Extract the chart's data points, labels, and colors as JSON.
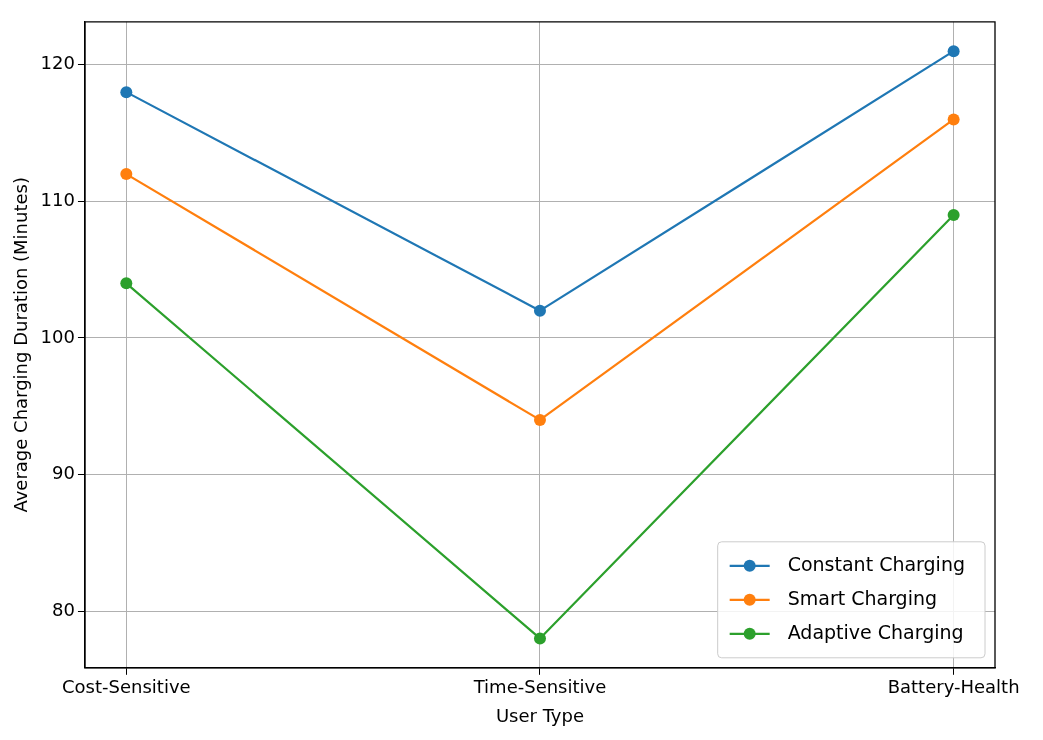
{
  "chart_data": {
    "type": "line",
    "xlabel": "User Type",
    "ylabel": "Average Charging Duration (Minutes)",
    "categories": [
      "Cost-Sensitive",
      "Time-Sensitive",
      "Battery-Health"
    ],
    "series": [
      {
        "name": "Constant Charging",
        "color": "#1f77b4",
        "values": [
          118,
          102,
          121
        ]
      },
      {
        "name": "Smart Charging",
        "color": "#ff7f0e",
        "values": [
          112,
          94,
          116
        ]
      },
      {
        "name": "Adaptive Charging",
        "color": "#2ca02c",
        "values": [
          104,
          78,
          109
        ]
      }
    ],
    "ylim": [
      75.85,
      123.15
    ],
    "yticks": [
      80,
      90,
      100,
      110,
      120
    ],
    "grid": true,
    "legend": "bottom right",
    "marker": "circle",
    "line_style": "solid"
  }
}
